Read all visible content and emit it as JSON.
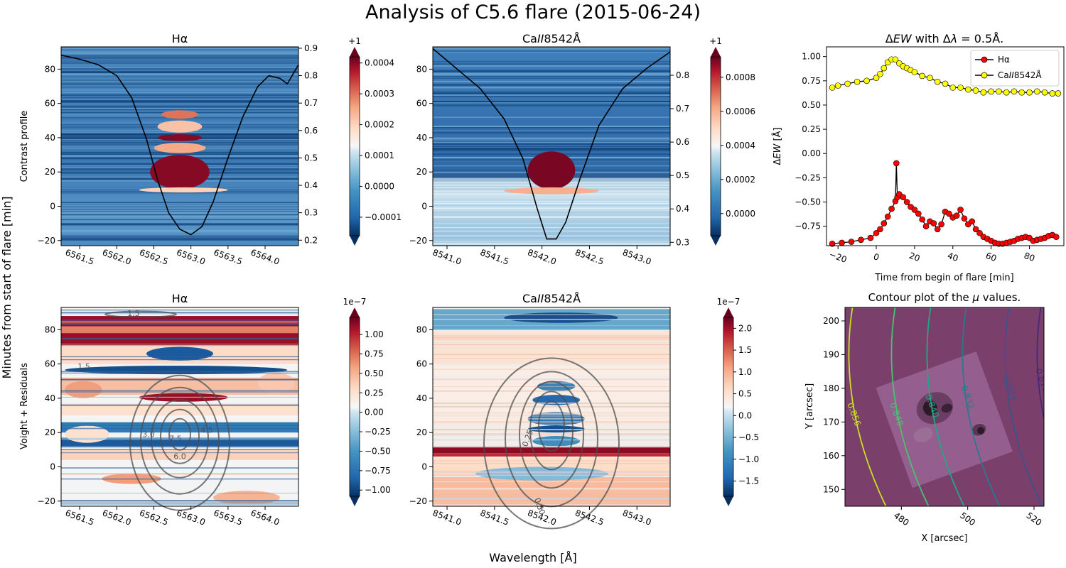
{
  "figure": {
    "suptitle": "Analysis of C5.6 flare (2015-06-24)",
    "supylabel": "Minutes from start of flare [min]",
    "supxlabel": "Wavelength [Å]"
  },
  "colors": {
    "cmap_low": "#053061",
    "cmap_mid": "#f7f7f7",
    "cmap_high": "#67001f",
    "profile_line": "#000000",
    "contour": "#4d4d4d",
    "ha_marker": "#ff0000",
    "ca_marker": "#ffff00",
    "map_background": "#7b3f6b"
  },
  "chart_data": [
    {
      "type": "heatmap",
      "id": "ha_top",
      "title": "Hα",
      "ylabel": "Contrast profile",
      "xlim": [
        6561.25,
        6564.45
      ],
      "ylim": [
        -23,
        93
      ],
      "xticks": [
        "6561.5",
        "6562.0",
        "6562.5",
        "6563.0",
        "6563.5",
        "6564.0"
      ],
      "yticks": [
        "−20",
        "0",
        "20",
        "40",
        "60",
        "80"
      ],
      "y2lim": [
        0.18,
        0.905
      ],
      "y2ticks": [
        "0.2",
        "0.3",
        "0.4",
        "0.5",
        "0.6",
        "0.7",
        "0.8",
        "0.9"
      ],
      "colorbar": {
        "min": -0.00016,
        "max": 0.00042,
        "offset": "+1",
        "ticks": [
          "−0.0001",
          "0.0000",
          "0.0001",
          "0.0002",
          "0.0003",
          "0.0004"
        ]
      },
      "bands": [
        {
          "x": [
            6562.45,
            6563.25
          ],
          "y": [
            10,
            30
          ],
          "value": 0.0004
        },
        {
          "x": [
            6562.5,
            6563.2
          ],
          "y": [
            31,
            37
          ],
          "value": 0.00025
        },
        {
          "x": [
            6562.55,
            6563.15
          ],
          "y": [
            38,
            42
          ],
          "value": 0.0004
        },
        {
          "x": [
            6562.55,
            6563.15
          ],
          "y": [
            43,
            50
          ],
          "value": 0.00022
        },
        {
          "x": [
            6562.6,
            6563.1
          ],
          "y": [
            51,
            56
          ],
          "value": 0.0003
        },
        {
          "x": [
            6562.3,
            6563.5
          ],
          "y": [
            8,
            11
          ],
          "value": 0.0002
        }
      ],
      "profile": {
        "x": [
          6561.25,
          6561.5,
          6561.75,
          6562.0,
          6562.2,
          6562.4,
          6562.55,
          6562.7,
          6562.85,
          6563.0,
          6563.15,
          6563.3,
          6563.5,
          6563.7,
          6563.9,
          6564.05,
          6564.2,
          6564.3,
          6564.45
        ],
        "y": [
          0.875,
          0.86,
          0.84,
          0.8,
          0.72,
          0.57,
          0.42,
          0.3,
          0.24,
          0.22,
          0.25,
          0.34,
          0.5,
          0.65,
          0.76,
          0.8,
          0.79,
          0.77,
          0.84
        ]
      }
    },
    {
      "type": "heatmap",
      "id": "ca_top",
      "title": "CaII8542Å",
      "xlim": [
        8540.85,
        8543.35
      ],
      "ylim": [
        -23,
        93
      ],
      "xticks": [
        "8541.0",
        "8541.5",
        "8542.0",
        "8542.5",
        "8543.0"
      ],
      "yticks": [
        "−20",
        "0",
        "20",
        "40",
        "60",
        "80"
      ],
      "y2lim": [
        0.29,
        0.885
      ],
      "y2ticks": [
        "0.3",
        "0.4",
        "0.5",
        "0.6",
        "0.7",
        "0.8"
      ],
      "colorbar": {
        "min": -0.00013,
        "max": 0.00092,
        "offset": "+1",
        "ticks": [
          "0.0000",
          "0.0002",
          "0.0004",
          "0.0006",
          "0.0008"
        ]
      },
      "bands": [
        {
          "x": [
            8541.85,
            8542.35
          ],
          "y": [
            10,
            32
          ],
          "value": 0.0009
        },
        {
          "x": [
            8541.6,
            8542.6
          ],
          "y": [
            7,
            11
          ],
          "value": 0.0006
        }
      ],
      "profile": {
        "x": [
          8540.85,
          8541.1,
          8541.35,
          8541.6,
          8541.8,
          8541.95,
          8542.05,
          8542.15,
          8542.25,
          8542.4,
          8542.6,
          8542.85,
          8543.1,
          8543.35
        ],
        "y": [
          0.88,
          0.82,
          0.76,
          0.67,
          0.55,
          0.4,
          0.31,
          0.31,
          0.36,
          0.49,
          0.65,
          0.76,
          0.82,
          0.87
        ]
      }
    },
    {
      "type": "scatter",
      "id": "dew",
      "title": "ΔEW with Δλ = 0.5Å.",
      "xlabel": "Time from begin of flare [min]",
      "ylabel": "ΔEW [Å]",
      "xlim": [
        -26,
        98
      ],
      "ylim": [
        -0.95,
        1.1
      ],
      "xticks": [
        "−20",
        "0",
        "20",
        "40",
        "60",
        "80"
      ],
      "yticks": [
        "−0.75",
        "−0.50",
        "−0.25",
        "0.00",
        "0.25",
        "0.50",
        "0.75",
        "1.00"
      ],
      "legend": "top-right",
      "series": [
        {
          "name": "Hα",
          "color": "#ff0000",
          "x": [
            -23,
            -18,
            -13,
            -8,
            -3,
            0,
            2,
            4,
            6,
            8,
            10,
            10.5,
            11,
            12,
            14,
            16,
            18,
            20,
            22,
            24,
            26,
            28,
            30,
            32,
            34,
            36,
            38,
            40,
            42,
            44,
            46,
            48,
            50,
            52,
            54,
            56,
            58,
            60,
            62,
            64,
            66,
            68,
            70,
            72,
            74,
            76,
            78,
            80,
            82,
            84,
            86,
            88,
            90,
            92,
            94
          ],
          "y": [
            -0.93,
            -0.92,
            -0.91,
            -0.89,
            -0.87,
            -0.82,
            -0.78,
            -0.72,
            -0.65,
            -0.57,
            -0.49,
            -0.1,
            -0.45,
            -0.42,
            -0.45,
            -0.5,
            -0.55,
            -0.58,
            -0.62,
            -0.68,
            -0.75,
            -0.7,
            -0.72,
            -0.78,
            -0.73,
            -0.6,
            -0.62,
            -0.66,
            -0.64,
            -0.58,
            -0.67,
            -0.73,
            -0.7,
            -0.78,
            -0.82,
            -0.86,
            -0.88,
            -0.9,
            -0.92,
            -0.93,
            -0.93,
            -0.92,
            -0.91,
            -0.9,
            -0.88,
            -0.87,
            -0.86,
            -0.87,
            -0.9,
            -0.89,
            -0.88,
            -0.87,
            -0.85,
            -0.84,
            -0.86
          ]
        },
        {
          "name": "CaII8542Å",
          "color": "#ffff00",
          "x": [
            -23,
            -20,
            -15,
            -10,
            -5,
            0,
            2,
            4,
            6,
            8,
            10,
            12,
            14,
            16,
            18,
            20,
            24,
            28,
            32,
            36,
            40,
            44,
            48,
            52,
            56,
            60,
            64,
            68,
            72,
            76,
            80,
            84,
            88,
            92,
            95
          ],
          "y": [
            0.68,
            0.7,
            0.72,
            0.74,
            0.75,
            0.78,
            0.82,
            0.88,
            0.94,
            0.97,
            0.97,
            0.93,
            0.9,
            0.88,
            0.86,
            0.84,
            0.8,
            0.78,
            0.74,
            0.72,
            0.68,
            0.68,
            0.66,
            0.65,
            0.63,
            0.64,
            0.64,
            0.63,
            0.64,
            0.63,
            0.63,
            0.64,
            0.63,
            0.62,
            0.62
          ]
        }
      ]
    },
    {
      "type": "heatmap",
      "id": "ha_bottom",
      "title": "Hα",
      "ylabel": "Voight + Residuals",
      "xlim": [
        6561.25,
        6564.45
      ],
      "ylim": [
        -23,
        93
      ],
      "xticks": [
        "6561.5",
        "6562.0",
        "6562.5",
        "6563.0",
        "6563.5",
        "6564.0"
      ],
      "yticks": [
        "−20",
        "0",
        "20",
        "40",
        "60",
        "80"
      ],
      "colorbar": {
        "min": -1.08,
        "max": 1.22,
        "offset": "1e−7",
        "ticks": [
          "−1.00",
          "−0.75",
          "−0.50",
          "−0.25",
          "0.00",
          "0.25",
          "0.50",
          "0.75",
          "1.00"
        ]
      },
      "contour_labels": [
        "1.5",
        "1.5",
        "3.0",
        "7.5",
        "4.5",
        "6.0"
      ]
    },
    {
      "type": "heatmap",
      "id": "ca_bottom",
      "title": "CaII8542Å",
      "xlim": [
        8540.85,
        8543.35
      ],
      "ylim": [
        -23,
        93
      ],
      "xticks": [
        "8541.0",
        "8541.5",
        "8542.0",
        "8542.5",
        "8543.0"
      ],
      "yticks": [
        "−20",
        "0",
        "20",
        "40",
        "60",
        "80"
      ],
      "colorbar": {
        "min": -1.85,
        "max": 2.25,
        "offset": "1e−7",
        "ticks": [
          "−1.5",
          "−1.0",
          "−0.5",
          "0.0",
          "0.5",
          "1.0",
          "1.5",
          "2.0"
        ]
      },
      "contour_labels": [
        "0.25",
        "0.50"
      ]
    },
    {
      "type": "contour",
      "id": "mu",
      "title": "Contour plot of the μ values.",
      "xlabel": "X [arcsec]",
      "ylabel": "Y [arcsec]",
      "xlim": [
        463,
        523
      ],
      "ylim": [
        145,
        204
      ],
      "xticks": [
        "480",
        "500",
        "520"
      ],
      "yticks": [
        "150",
        "160",
        "170",
        "180",
        "190",
        "200"
      ],
      "levels": [
        {
          "label": "0.856",
          "color": "#c8e020"
        },
        {
          "label": "0.848",
          "color": "#4ac16d"
        },
        {
          "label": "0.840",
          "color": "#22a884"
        },
        {
          "label": "0.832",
          "color": "#2a788e"
        },
        {
          "label": "0.824",
          "color": "#3b528b"
        },
        {
          "label": "0.816",
          "color": "#482878"
        }
      ]
    }
  ]
}
